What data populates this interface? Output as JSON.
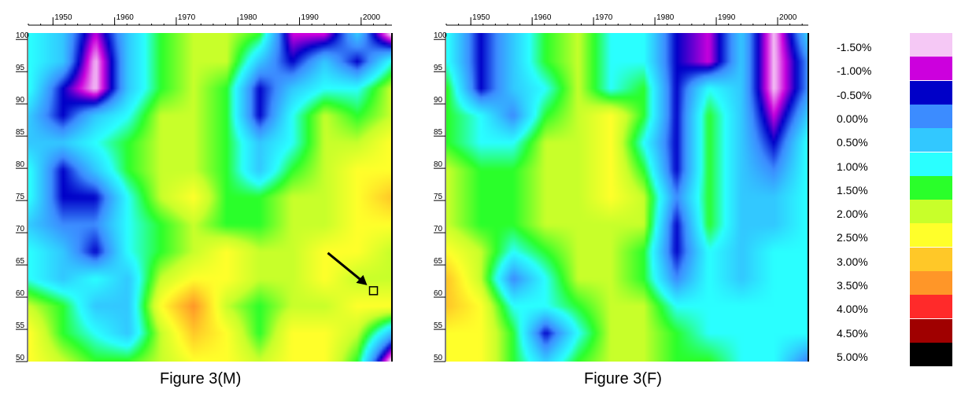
{
  "chart_data": [
    {
      "type": "heatmap",
      "caption": "Figure 3(M)",
      "x_ticks": [
        "1950",
        "1960",
        "1970",
        "1980",
        "1990",
        "2000"
      ],
      "y_ticks": [
        "100",
        "95",
        "90",
        "85",
        "80",
        "75",
        "70",
        "65",
        "60",
        "55",
        "50"
      ],
      "xlim": [
        1946,
        2005
      ],
      "ylim": [
        50,
        101
      ],
      "marker": {
        "type": "arrow-to-box",
        "year": 2002,
        "age": 61
      },
      "cells_percent": [
        [
          1.0,
          0.5,
          -1.0,
          0.5,
          1.5,
          2.0,
          2.0,
          1.5,
          -1.0,
          -1.0,
          0.5,
          -1.5
        ],
        [
          1.0,
          0.5,
          -1.5,
          0.5,
          1.5,
          2.0,
          2.0,
          0.5,
          -0.5,
          0.5,
          -0.5,
          1.0
        ],
        [
          1.0,
          -0.5,
          -1.5,
          0.5,
          1.5,
          2.0,
          1.5,
          -0.5,
          0.5,
          1.0,
          1.0,
          2.0
        ],
        [
          0.5,
          -0.5,
          0.5,
          1.0,
          2.0,
          2.0,
          1.5,
          -0.5,
          1.0,
          2.0,
          1.5,
          2.0
        ],
        [
          0.5,
          0.5,
          1.0,
          1.5,
          2.0,
          2.0,
          1.5,
          0.5,
          1.0,
          2.0,
          2.0,
          2.5
        ],
        [
          1.0,
          -0.5,
          0.5,
          1.5,
          2.0,
          2.0,
          1.5,
          0.5,
          1.5,
          2.0,
          2.5,
          2.5
        ],
        [
          1.0,
          -0.5,
          -0.5,
          1.0,
          2.0,
          2.5,
          1.5,
          1.5,
          2.0,
          2.0,
          2.5,
          3.0
        ],
        [
          0.5,
          0.0,
          0.0,
          1.0,
          1.5,
          2.0,
          1.5,
          1.5,
          2.0,
          2.0,
          2.5,
          2.5
        ],
        [
          1.0,
          0.5,
          -0.5,
          1.0,
          1.5,
          2.0,
          2.5,
          2.0,
          2.0,
          2.5,
          2.5,
          2.0
        ],
        [
          1.0,
          0.5,
          1.0,
          0.5,
          2.0,
          2.5,
          2.5,
          2.0,
          2.0,
          2.5,
          2.0,
          2.0
        ],
        [
          2.0,
          1.5,
          0.5,
          0.5,
          2.5,
          3.5,
          2.0,
          1.5,
          2.0,
          2.0,
          2.5,
          2.5
        ],
        [
          2.5,
          1.5,
          1.0,
          0.5,
          2.0,
          3.0,
          2.5,
          1.5,
          2.5,
          2.5,
          2.0,
          0.5
        ],
        [
          2.5,
          2.0,
          1.5,
          1.5,
          2.0,
          2.5,
          2.5,
          2.0,
          2.5,
          2.5,
          1.5,
          -1.5
        ]
      ]
    },
    {
      "type": "heatmap",
      "caption": "Figure 3(F)",
      "x_ticks": [
        "1950",
        "1960",
        "1970",
        "1980",
        "1990",
        "2000"
      ],
      "y_ticks": [
        "100",
        "95",
        "90",
        "85",
        "80",
        "75",
        "70",
        "65",
        "60",
        "55",
        "50"
      ],
      "xlim": [
        1946,
        2005
      ],
      "ylim": [
        50,
        101
      ],
      "cells_percent": [
        [
          1.0,
          -0.5,
          0.5,
          1.5,
          2.0,
          1.0,
          1.0,
          -0.5,
          -1.0,
          0.5,
          -1.5,
          0.5
        ],
        [
          1.0,
          -0.5,
          0.5,
          1.5,
          2.0,
          1.0,
          1.0,
          -0.5,
          -1.0,
          0.5,
          -1.5,
          0.0
        ],
        [
          1.5,
          -0.5,
          0.5,
          1.0,
          2.0,
          1.0,
          1.5,
          -0.5,
          1.0,
          0.5,
          -1.5,
          0.0
        ],
        [
          1.5,
          1.0,
          0.0,
          1.5,
          2.0,
          2.5,
          1.5,
          -0.5,
          1.5,
          0.5,
          -1.0,
          0.5
        ],
        [
          1.5,
          1.0,
          1.0,
          2.0,
          2.0,
          2.5,
          1.0,
          -0.5,
          1.5,
          0.5,
          -0.5,
          1.0
        ],
        [
          2.0,
          1.5,
          1.5,
          2.0,
          2.0,
          2.5,
          1.5,
          -0.5,
          1.5,
          0.5,
          0.0,
          1.0
        ],
        [
          2.0,
          1.5,
          1.5,
          2.0,
          2.0,
          2.5,
          2.0,
          0.0,
          1.5,
          0.5,
          0.5,
          1.0
        ],
        [
          2.0,
          1.5,
          1.5,
          2.0,
          2.0,
          2.0,
          2.0,
          -0.5,
          1.5,
          0.5,
          0.5,
          1.0
        ],
        [
          2.5,
          2.0,
          1.0,
          1.5,
          2.0,
          2.0,
          1.5,
          -0.5,
          1.0,
          0.5,
          1.0,
          1.0
        ],
        [
          3.0,
          2.0,
          0.0,
          1.0,
          2.0,
          2.0,
          1.5,
          0.0,
          1.0,
          0.5,
          1.0,
          1.0
        ],
        [
          3.0,
          2.5,
          1.0,
          1.0,
          1.5,
          2.0,
          2.0,
          1.0,
          1.0,
          1.0,
          1.0,
          1.0
        ],
        [
          2.5,
          2.5,
          1.5,
          -0.5,
          1.0,
          2.0,
          2.0,
          1.5,
          1.0,
          1.0,
          1.0,
          1.0
        ],
        [
          2.5,
          2.5,
          1.5,
          0.5,
          1.5,
          2.0,
          2.0,
          1.5,
          1.5,
          1.0,
          1.0,
          0.0
        ]
      ]
    }
  ],
  "legend": {
    "labels": [
      "-1.50%",
      "-1.00%",
      "-0.50%",
      "0.00%",
      "0.50%",
      "1.00%",
      "1.50%",
      "2.00%",
      "2.50%",
      "3.00%",
      "3.50%",
      "4.00%",
      "4.50%",
      "5.00%"
    ],
    "levels": [
      -1.5,
      -1.0,
      -0.5,
      0.0,
      0.5,
      1.0,
      1.5,
      2.0,
      2.5,
      3.0,
      3.5,
      4.0,
      4.5,
      5.0
    ],
    "colors": [
      "#f5c8f5",
      "#cc00dd",
      "#0000c8",
      "#3c8cff",
      "#32c8ff",
      "#2affff",
      "#2aff2a",
      "#c8ff2a",
      "#ffff2a",
      "#ffc828",
      "#ff9628",
      "#ff2a2a",
      "#a00000",
      "#000000"
    ]
  }
}
